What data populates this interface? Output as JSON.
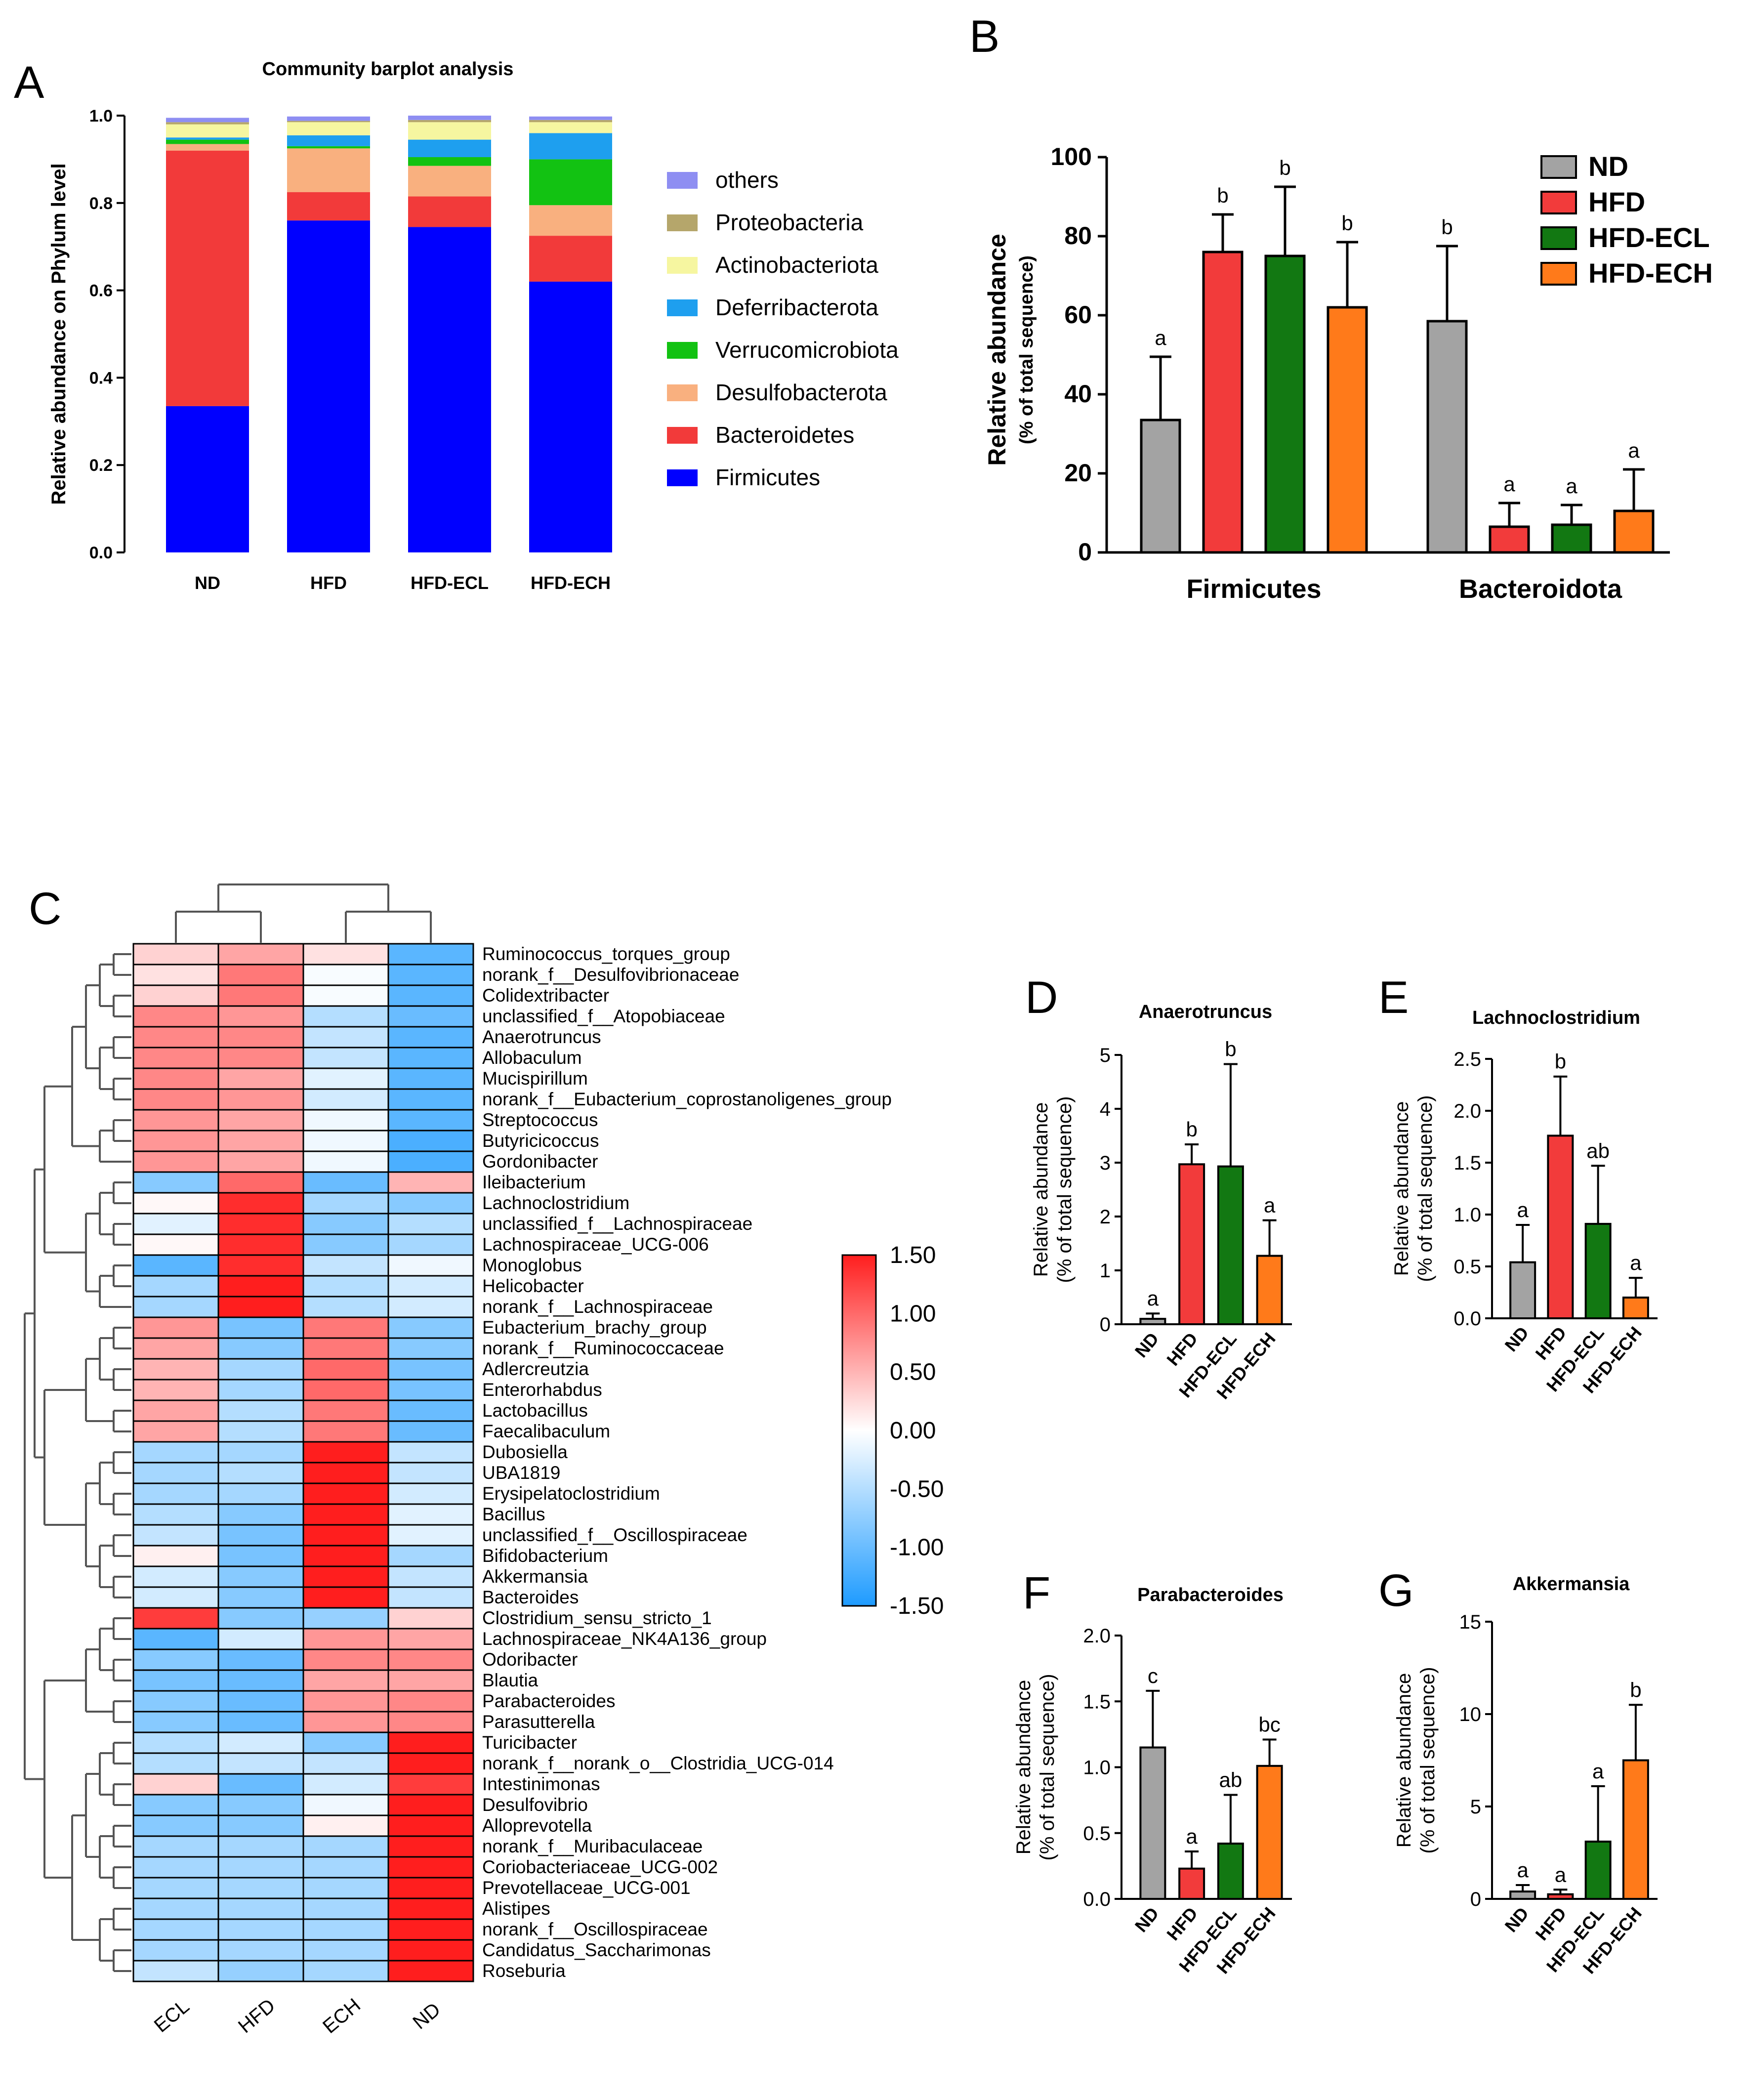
{
  "groups": [
    "ND",
    "HFD",
    "HFD-ECL",
    "HFD-ECH"
  ],
  "group_colors": [
    "#a3a3a3",
    "#f23b3b",
    "#127812",
    "#ff7a1a"
  ],
  "panels": {
    "A": "A",
    "B": "B",
    "C": "C",
    "D": "D",
    "E": "E",
    "F": "F",
    "G": "G"
  },
  "chart_data": [
    {
      "id": "A",
      "type": "bar",
      "stacked": true,
      "title": "Community barplot analysis",
      "ylabel": "Relative abundance on Phylum level",
      "xlabel": "",
      "ylim": [
        0,
        1
      ],
      "yticks": [
        "0.0",
        "0.2",
        "0.4",
        "0.6",
        "0.8",
        "1.0"
      ],
      "categories": [
        "ND",
        "HFD",
        "HFD-ECL",
        "HFD-ECH"
      ],
      "series": [
        {
          "name": "Firmicutes",
          "color": "#0000ff",
          "values": [
            0.335,
            0.76,
            0.745,
            0.62
          ]
        },
        {
          "name": "Bacteroidetes",
          "color": "#f23a3a",
          "values": [
            0.585,
            0.065,
            0.07,
            0.105
          ]
        },
        {
          "name": "Desulfobacterota",
          "color": "#f9b07f",
          "values": [
            0.015,
            0.1,
            0.07,
            0.07
          ]
        },
        {
          "name": "Verrucomicrobiota",
          "color": "#12c212",
          "values": [
            0.01,
            0.005,
            0.02,
            0.105
          ]
        },
        {
          "name": "Deferribacterota",
          "color": "#1e9fef",
          "values": [
            0.005,
            0.025,
            0.04,
            0.06
          ]
        },
        {
          "name": "Actinobacteriota",
          "color": "#f6f6a0",
          "values": [
            0.03,
            0.03,
            0.04,
            0.025
          ]
        },
        {
          "name": "Proteobacteria",
          "color": "#b5a66b",
          "values": [
            0.005,
            0.003,
            0.005,
            0.005
          ]
        },
        {
          "name": "others",
          "color": "#8e8ef2",
          "values": [
            0.01,
            0.01,
            0.01,
            0.008
          ]
        }
      ],
      "legend_order": [
        "others",
        "Proteobacteria",
        "Actinobacteriota",
        "Deferribacterota",
        "Verrucomicrobiota",
        "Desulfobacterota",
        "Bacteroidetes",
        "Firmicutes"
      ],
      "legend": "right"
    },
    {
      "id": "B",
      "type": "bar",
      "title": "",
      "ylabel": "Relative abundance",
      "ylabel2": "(% of total sequence)",
      "ylim": [
        0,
        100
      ],
      "yticks": [
        "0",
        "20",
        "40",
        "60",
        "80",
        "100"
      ],
      "categories": [
        "Firmicutes",
        "Bacteroidota"
      ],
      "series": [
        {
          "name": "ND",
          "values": [
            33.5,
            58.5
          ],
          "errors": [
            16,
            19
          ],
          "letters": [
            "a",
            "b"
          ]
        },
        {
          "name": "HFD",
          "values": [
            76,
            6.5
          ],
          "errors": [
            9.5,
            6
          ],
          "letters": [
            "b",
            "a"
          ]
        },
        {
          "name": "HFD-ECL",
          "values": [
            75,
            7
          ],
          "errors": [
            17.5,
            5
          ],
          "letters": [
            "b",
            "a"
          ]
        },
        {
          "name": "HFD-ECH",
          "values": [
            62,
            10.5
          ],
          "errors": [
            16.5,
            10.5
          ],
          "letters": [
            "b",
            "a"
          ]
        }
      ],
      "legend": "top-right"
    },
    {
      "id": "C",
      "type": "heatmap",
      "title": "",
      "columns": [
        "ECL",
        "HFD",
        "ECH",
        "ND"
      ],
      "colorbar_ticks": [
        "1.50",
        "1.00",
        "0.50",
        "0.00",
        "-0.50",
        "-1.00",
        "-1.50"
      ],
      "range": [
        -1.5,
        1.5
      ],
      "rows": [
        {
          "label": "Ruminococcus_torques_group",
          "values": [
            0.3,
            0.6,
            0.2,
            -1.1
          ]
        },
        {
          "label": "norank_f__Desulfovibrionaceae",
          "values": [
            0.2,
            0.9,
            -0.05,
            -1.1
          ]
        },
        {
          "label": "Colidextribacter",
          "values": [
            0.3,
            0.9,
            -0.05,
            -1.1
          ]
        },
        {
          "label": "unclassified_f__Atopobiaceae",
          "values": [
            0.8,
            0.7,
            -0.5,
            -1.0
          ]
        },
        {
          "label": "Anaerotruncus",
          "values": [
            0.8,
            0.8,
            -0.4,
            -1.1
          ]
        },
        {
          "label": "Allobaculum",
          "values": [
            0.8,
            0.8,
            -0.4,
            -1.1
          ]
        },
        {
          "label": "Mucispirillum",
          "values": [
            0.8,
            0.6,
            -0.2,
            -1.1
          ]
        },
        {
          "label": "norank_f__Eubacterium_coprostanoligenes_group",
          "values": [
            0.8,
            0.7,
            -0.3,
            -1.1
          ]
        },
        {
          "label": "Streptococcus",
          "values": [
            0.7,
            0.6,
            -0.1,
            -1.1
          ]
        },
        {
          "label": "Butyricicoccus",
          "values": [
            0.7,
            0.6,
            -0.1,
            -1.2
          ]
        },
        {
          "label": "Gordonibacter",
          "values": [
            0.7,
            0.6,
            -0.1,
            -1.2
          ]
        },
        {
          "label": "Ileibacterium",
          "values": [
            -0.8,
            1.0,
            -1.0,
            0.5
          ]
        },
        {
          "label": "Lachnoclostridium",
          "values": [
            0.05,
            1.4,
            -0.6,
            -0.8
          ]
        },
        {
          "label": "unclassified_f__Lachnospiraceae",
          "values": [
            -0.2,
            1.4,
            -0.8,
            -0.5
          ]
        },
        {
          "label": "Lachnospiraceae_UCG-006",
          "values": [
            0.05,
            1.4,
            -0.8,
            -0.6
          ]
        },
        {
          "label": "Monoglobus",
          "values": [
            -1.1,
            1.4,
            -0.4,
            -0.1
          ]
        },
        {
          "label": "Helicobacter",
          "values": [
            -0.6,
            1.5,
            -0.5,
            -0.3
          ]
        },
        {
          "label": "norank_f__Lachnospiraceae",
          "values": [
            -0.6,
            1.5,
            -0.5,
            -0.3
          ]
        },
        {
          "label": "Eubacterium_brachy_group",
          "values": [
            0.7,
            -0.9,
            0.9,
            -0.8
          ]
        },
        {
          "label": "norank_f__Ruminococcaceae",
          "values": [
            0.6,
            -0.8,
            0.9,
            -0.8
          ]
        },
        {
          "label": "Adlercreutzia",
          "values": [
            0.5,
            -0.6,
            1.0,
            -0.9
          ]
        },
        {
          "label": "Enterorhabdus",
          "values": [
            0.5,
            -0.6,
            1.0,
            -0.9
          ]
        },
        {
          "label": "Lactobacillus",
          "values": [
            0.6,
            -0.5,
            0.9,
            -1.0
          ]
        },
        {
          "label": "Faecalibaculum",
          "values": [
            0.6,
            -0.5,
            0.9,
            -1.0
          ]
        },
        {
          "label": "Dubosiella",
          "values": [
            -0.6,
            -0.6,
            1.5,
            -0.4
          ]
        },
        {
          "label": "UBA1819",
          "values": [
            -0.6,
            -0.5,
            1.5,
            -0.4
          ]
        },
        {
          "label": "Erysipelatoclostridium",
          "values": [
            -0.6,
            -0.6,
            1.5,
            -0.3
          ]
        },
        {
          "label": "Bacillus",
          "values": [
            -0.5,
            -0.8,
            1.5,
            -0.2
          ]
        },
        {
          "label": "unclassified_f__Oscillospiraceae",
          "values": [
            -0.4,
            -0.9,
            1.5,
            -0.2
          ]
        },
        {
          "label": "Bifidobacterium",
          "values": [
            0.1,
            -0.9,
            1.5,
            -0.6
          ]
        },
        {
          "label": "Akkermansia",
          "values": [
            -0.3,
            -0.8,
            1.5,
            -0.4
          ]
        },
        {
          "label": "Bacteroides",
          "values": [
            -0.3,
            -0.8,
            1.5,
            -0.4
          ]
        },
        {
          "label": "Clostridium_sensu_stricto_1",
          "values": [
            1.3,
            -0.8,
            -0.7,
            0.3
          ]
        },
        {
          "label": "Lachnospiraceae_NK4A136_group",
          "values": [
            -1.1,
            -0.3,
            0.7,
            0.6
          ]
        },
        {
          "label": "Odoribacter",
          "values": [
            -0.8,
            -1.0,
            0.8,
            0.8
          ]
        },
        {
          "label": "Blautia",
          "values": [
            -0.9,
            -1.0,
            0.6,
            0.6
          ]
        },
        {
          "label": "Parabacteroides",
          "values": [
            -0.8,
            -1.0,
            0.7,
            0.8
          ]
        },
        {
          "label": "Parasutterella",
          "values": [
            -0.8,
            -1.0,
            0.7,
            0.8
          ]
        },
        {
          "label": "Turicibacter",
          "values": [
            -0.5,
            -0.3,
            -0.8,
            1.5
          ]
        },
        {
          "label": "norank_f__norank_o__Clostridia_UCG-014",
          "values": [
            -0.5,
            -0.4,
            -0.4,
            1.5
          ]
        },
        {
          "label": "Intestinimonas",
          "values": [
            0.3,
            -1.0,
            -0.3,
            1.3
          ]
        },
        {
          "label": "Desulfovibrio",
          "values": [
            -0.8,
            -0.8,
            -0.1,
            1.5
          ]
        },
        {
          "label": "Alloprevotella",
          "values": [
            -0.8,
            -0.8,
            0.1,
            1.5
          ]
        },
        {
          "label": "norank_f__Muribaculaceae",
          "values": [
            -0.6,
            -0.6,
            -0.6,
            1.5
          ]
        },
        {
          "label": "Coriobacteriaceae_UCG-002",
          "values": [
            -0.6,
            -0.6,
            -0.6,
            1.5
          ]
        },
        {
          "label": "Prevotellaceae_UCG-001",
          "values": [
            -0.6,
            -0.6,
            -0.6,
            1.5
          ]
        },
        {
          "label": "Alistipes",
          "values": [
            -0.6,
            -0.6,
            -0.6,
            1.5
          ]
        },
        {
          "label": "norank_f__Oscillospiraceae",
          "values": [
            -0.6,
            -0.6,
            -0.6,
            1.5
          ]
        },
        {
          "label": "Candidatus_Saccharimonas",
          "values": [
            -0.6,
            -0.6,
            -0.6,
            1.5
          ]
        },
        {
          "label": "Roseburia",
          "values": [
            -0.4,
            -0.7,
            -0.6,
            1.5
          ]
        }
      ]
    },
    {
      "id": "D",
      "type": "bar",
      "title": "Anaerotruncus",
      "ylabel": "Relative abundance",
      "ylabel2": "(% of total sequence)",
      "ylim": [
        0,
        5
      ],
      "yticks": [
        "0",
        "1",
        "2",
        "3",
        "4",
        "5"
      ],
      "categories": [
        "ND",
        "HFD",
        "HFD-ECL",
        "HFD-ECH"
      ],
      "values": [
        0.1,
        2.97,
        2.93,
        1.27
      ],
      "errors": [
        0.1,
        0.37,
        1.9,
        0.66
      ],
      "letters": [
        "a",
        "b",
        "b",
        "a"
      ]
    },
    {
      "id": "E",
      "type": "bar",
      "title": "Lachnoclostridium",
      "ylabel": "Relative abundance",
      "ylabel2": "(% of total sequence)",
      "ylim": [
        0,
        2.5
      ],
      "yticks": [
        "0.0",
        "0.5",
        "1.0",
        "1.5",
        "2.0",
        "2.5"
      ],
      "categories": [
        "ND",
        "HFD",
        "HFD-ECL",
        "HFD-ECH"
      ],
      "values": [
        0.54,
        1.76,
        0.91,
        0.2
      ],
      "errors": [
        0.36,
        0.57,
        0.56,
        0.19
      ],
      "letters": [
        "a",
        "b",
        "ab",
        "a"
      ]
    },
    {
      "id": "F",
      "type": "bar",
      "title": "Parabacteroides",
      "ylabel": "Relative abundance",
      "ylabel2": "(% of total sequence)",
      "ylim": [
        0,
        2.0
      ],
      "yticks": [
        "0.0",
        "0.5",
        "1.0",
        "1.5",
        "2.0"
      ],
      "categories": [
        "ND",
        "HFD",
        "HFD-ECL",
        "HFD-ECH"
      ],
      "values": [
        1.15,
        0.23,
        0.42,
        1.01
      ],
      "errors": [
        0.43,
        0.13,
        0.37,
        0.2
      ],
      "letters": [
        "c",
        "a",
        "ab",
        "bc"
      ]
    },
    {
      "id": "G",
      "type": "bar",
      "title": "Akkermansia",
      "ylabel": "Relative abundance",
      "ylabel2": "(% of total sequence)",
      "ylim": [
        0,
        15
      ],
      "yticks": [
        "0",
        "5",
        "10",
        "15"
      ],
      "categories": [
        "ND",
        "HFD",
        "HFD-ECL",
        "HFD-ECH"
      ],
      "values": [
        0.4,
        0.25,
        3.1,
        7.5
      ],
      "errors": [
        0.35,
        0.25,
        3.0,
        3.0
      ],
      "letters": [
        "a",
        "a",
        "a",
        "b"
      ]
    }
  ]
}
